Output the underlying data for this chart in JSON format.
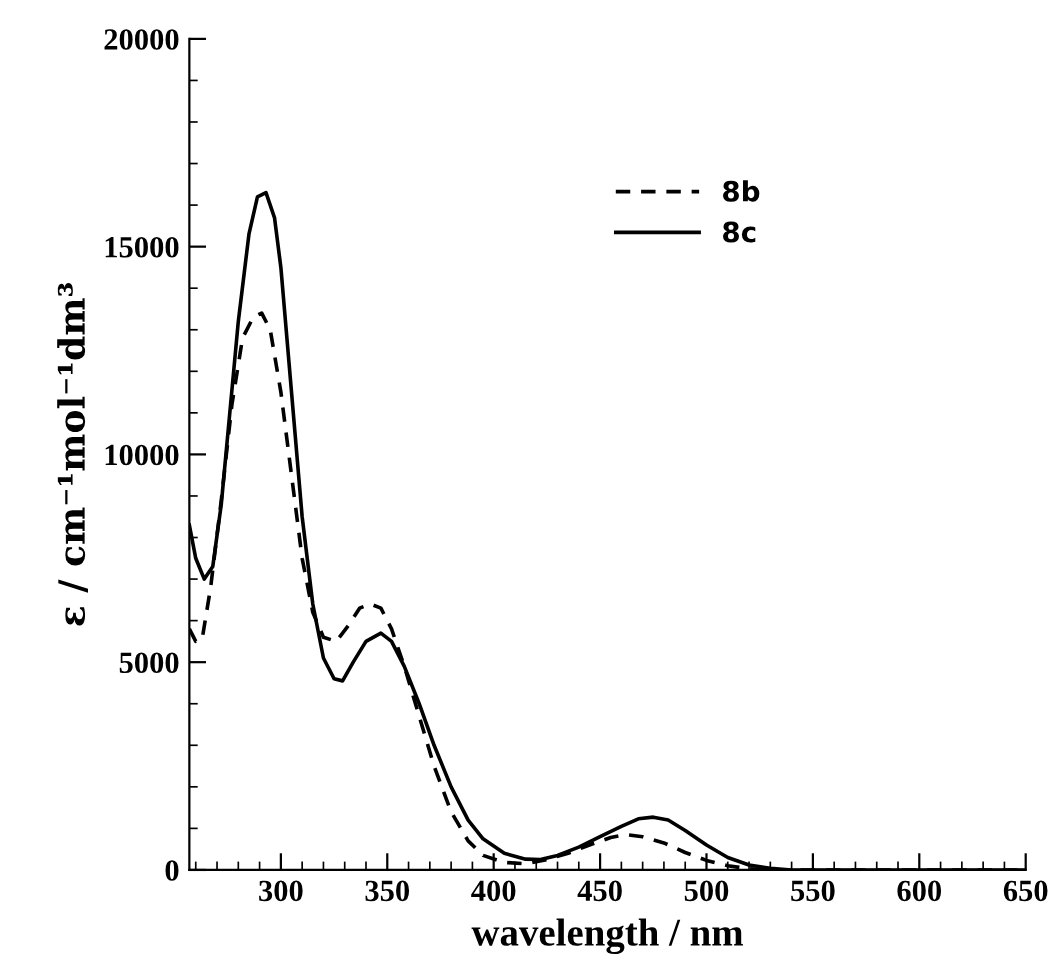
{
  "chart_data": {
    "type": "line",
    "xlabel": "wavelength / nm",
    "ylabel": "ε / cm⁻¹mol⁻¹dm³",
    "xlim": [
      257,
      650
    ],
    "xticks": [
      300,
      350,
      400,
      450,
      500,
      550,
      600,
      650
    ],
    "ylim": [
      0,
      20000
    ],
    "yticks": [
      0,
      5000,
      10000,
      15000,
      20000
    ],
    "grid": false,
    "legend": "top right",
    "marker": "none",
    "series": [
      {
        "name": "8b",
        "color": "#000000",
        "line_style": "dashed",
        "x": [
          257,
          260,
          263,
          267,
          272,
          277,
          282,
          287,
          291,
          295,
          300,
          305,
          310,
          315,
          320,
          326,
          332,
          337,
          342,
          347,
          352,
          358,
          365,
          372,
          380,
          388,
          395,
          405,
          415,
          425,
          435,
          445,
          455,
          462,
          470,
          480,
          490,
          500,
          510,
          520,
          530,
          560,
          600,
          650
        ],
        "values": [
          5800,
          5500,
          5550,
          6800,
          8900,
          11200,
          12800,
          13300,
          13400,
          13000,
          11500,
          9500,
          7500,
          6200,
          5600,
          5500,
          5900,
          6300,
          6400,
          6300,
          5800,
          4900,
          3700,
          2500,
          1400,
          700,
          350,
          180,
          150,
          250,
          400,
          600,
          780,
          850,
          800,
          650,
          420,
          230,
          100,
          30,
          0,
          0,
          0,
          0
        ]
      },
      {
        "name": "8c",
        "color": "#000000",
        "line_style": "solid",
        "x": [
          257,
          260,
          264,
          268,
          272,
          276,
          280,
          285,
          289,
          293,
          297,
          300,
          305,
          310,
          315,
          320,
          325,
          329,
          334,
          340,
          347,
          352,
          358,
          365,
          372,
          380,
          388,
          395,
          405,
          415,
          422,
          430,
          440,
          450,
          460,
          468,
          475,
          482,
          490,
          500,
          510,
          520,
          530,
          540,
          560,
          600,
          650
        ],
        "values": [
          8300,
          7500,
          7000,
          7300,
          8800,
          11000,
          13200,
          15300,
          16200,
          16300,
          15700,
          14500,
          11500,
          8500,
          6400,
          5100,
          4600,
          4550,
          5000,
          5500,
          5700,
          5500,
          4900,
          4000,
          3000,
          2000,
          1200,
          750,
          400,
          260,
          250,
          350,
          550,
          800,
          1050,
          1230,
          1270,
          1200,
          950,
          600,
          300,
          120,
          40,
          0,
          0,
          0,
          0
        ]
      }
    ]
  }
}
